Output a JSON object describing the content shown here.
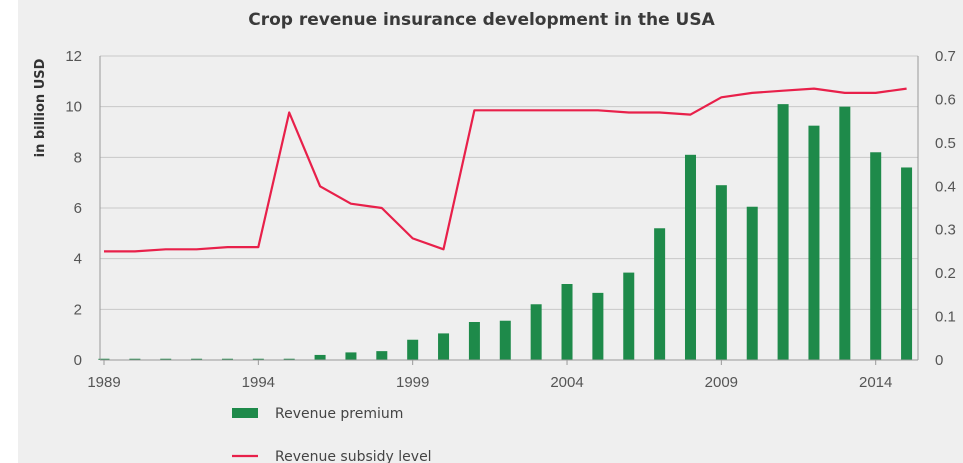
{
  "chart_data": {
    "type": "bar",
    "title": "Crop revenue insurance development in the USA",
    "ylabel": "in billion USD",
    "ylabel_right": "",
    "x": [
      1989,
      1990,
      1991,
      1992,
      1993,
      1994,
      1995,
      1996,
      1997,
      1998,
      1999,
      2000,
      2001,
      2002,
      2003,
      2004,
      2005,
      2006,
      2007,
      2008,
      2009,
      2010,
      2011,
      2012,
      2013,
      2014,
      2015
    ],
    "xticks": [
      "1989",
      "1994",
      "1999",
      "2004",
      "2009",
      "2014"
    ],
    "yticks": [
      "0",
      "2",
      "4",
      "6",
      "8",
      "10",
      "12"
    ],
    "yticks_right": [
      "0",
      "0.1",
      "0.2",
      "0.3",
      "0.4",
      "0.5",
      "0.6",
      "0.7"
    ],
    "ylim": [
      0,
      12
    ],
    "ylim_right": [
      0,
      0.7
    ],
    "grid": true,
    "legend_position": "bottom-left",
    "colors": {
      "bars": "#1e8a4a",
      "line": "#e8204a",
      "grid": "#c8c8c8",
      "panel": "#efefef"
    },
    "series": [
      {
        "name": "Revenue premium",
        "type": "bar",
        "axis": "left",
        "values": [
          0.05,
          0.05,
          0.05,
          0.05,
          0.05,
          0.05,
          0.05,
          0.2,
          0.3,
          0.35,
          0.8,
          1.05,
          1.5,
          1.55,
          2.2,
          3.0,
          2.65,
          3.45,
          5.2,
          8.1,
          6.9,
          6.05,
          10.1,
          9.25,
          10.0,
          8.2,
          7.6
        ]
      },
      {
        "name": "Revenue subsidy level",
        "type": "line",
        "axis": "right",
        "values": [
          0.25,
          0.25,
          0.255,
          0.255,
          0.26,
          0.26,
          0.57,
          0.4,
          0.36,
          0.35,
          0.28,
          0.255,
          0.575,
          0.575,
          0.575,
          0.575,
          0.575,
          0.57,
          0.57,
          0.565,
          0.605,
          0.615,
          0.62,
          0.625,
          0.615,
          0.615,
          0.625
        ]
      }
    ]
  }
}
